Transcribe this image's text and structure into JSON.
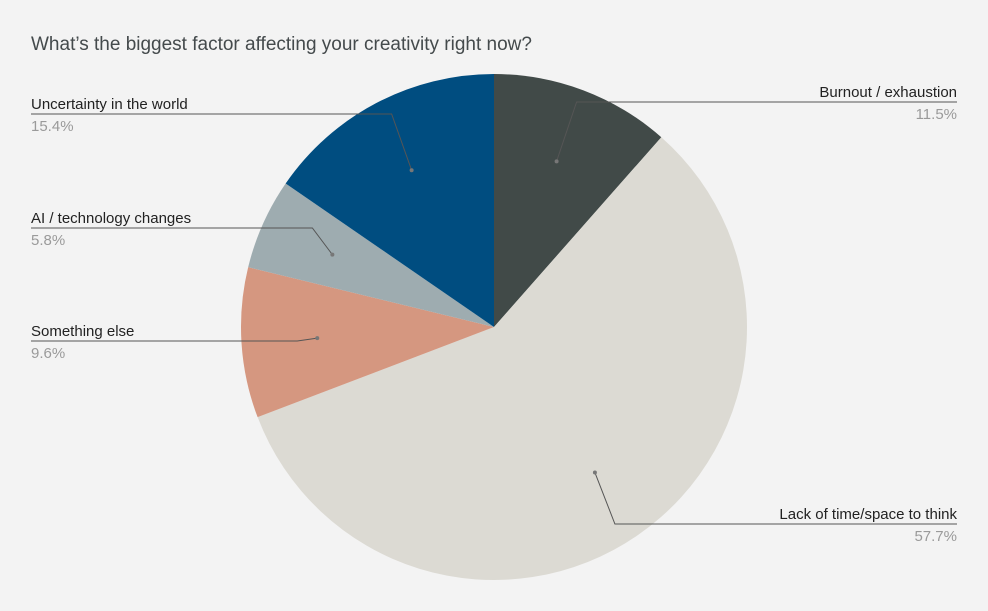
{
  "chart_data": {
    "type": "pie",
    "title": "What’s the biggest factor affecting your creativity right now?",
    "slices": [
      {
        "label": "Burnout / exhaustion",
        "value": 11.5,
        "value_label": "11.5%",
        "color": "#414a48",
        "side": "right"
      },
      {
        "label": "Lack of time/space to think",
        "value": 57.7,
        "value_label": "57.7%",
        "color": "#dcdad3",
        "side": "right"
      },
      {
        "label": "Something else",
        "value": 9.6,
        "value_label": "9.6%",
        "color": "#d59780",
        "side": "left"
      },
      {
        "label": "AI / technology changes",
        "value": 5.8,
        "value_label": "5.8%",
        "color": "#9eacb0",
        "side": "left"
      },
      {
        "label": "Uncertainty in the world",
        "value": 15.4,
        "value_label": "15.4%",
        "color": "#004d80",
        "side": "left"
      }
    ],
    "legend": "none",
    "labels": "outside-with-leader-lines",
    "start_angle": "12 o'clock",
    "direction": "clockwise"
  }
}
